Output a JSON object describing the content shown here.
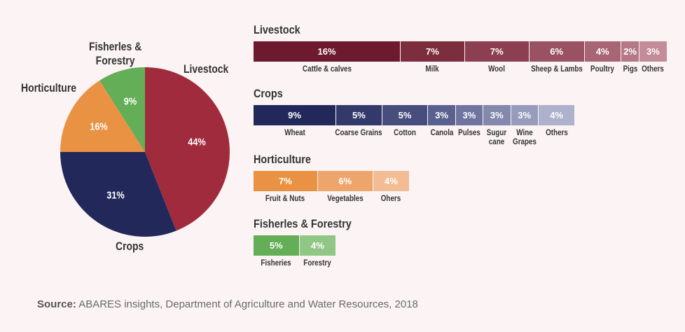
{
  "colors": {
    "background": "#fbf3f4",
    "livestock": "#a02b3c",
    "crops": "#22285a",
    "horticulture": "#e99243",
    "fisheries": "#63ae57"
  },
  "chart_data": [
    {
      "type": "pie",
      "slices": [
        {
          "label": "Livestock",
          "value": 44,
          "value_label": "44%",
          "color": "#a02b3c"
        },
        {
          "label": "Crops",
          "value": 31,
          "value_label": "31%",
          "color": "#22285a"
        },
        {
          "label": "Horticulture",
          "value": 16,
          "value_label": "16%",
          "color": "#e99243"
        },
        {
          "label": "Fisherles &\nForestry",
          "value": 9,
          "value_label": "9%",
          "color": "#63ae57"
        }
      ]
    },
    {
      "type": "bar",
      "orientation": "stacked-horizontal",
      "groups": [
        {
          "title": "Livestock",
          "segments": [
            {
              "label": "Cattle & calves",
              "value": 16,
              "value_label": "16%",
              "color": "#6e1a2e"
            },
            {
              "label": "Milk",
              "value": 7,
              "value_label": "7%",
              "color": "#7c2d3e"
            },
            {
              "label": "Wool",
              "value": 7,
              "value_label": "7%",
              "color": "#8b3f50"
            },
            {
              "label": "Sheep & Lambs",
              "value": 6,
              "value_label": "6%",
              "color": "#9a5262"
            },
            {
              "label": "Poultry",
              "value": 4,
              "value_label": "4%",
              "color": "#a86574"
            },
            {
              "label": "Pigs",
              "value": 2,
              "value_label": "2%",
              "color": "#b57886"
            },
            {
              "label": "Others",
              "value": 3,
              "value_label": "3%",
              "color": "#c28c98"
            }
          ]
        },
        {
          "title": "Crops",
          "segments": [
            {
              "label": "Wheat",
              "value": 9,
              "value_label": "9%",
              "color": "#22285a"
            },
            {
              "label": "Coarse Grains",
              "value": 5,
              "value_label": "5%",
              "color": "#333a6b"
            },
            {
              "label": "Cotton",
              "value": 5,
              "value_label": "5%",
              "color": "#474e7d"
            },
            {
              "label": "Canola",
              "value": 3,
              "value_label": "3%",
              "color": "#5b618e"
            },
            {
              "label": "Pulses",
              "value": 3,
              "value_label": "3%",
              "color": "#6f759e"
            },
            {
              "label": "Sugur\ncane",
              "value": 3,
              "value_label": "3%",
              "color": "#8388ad"
            },
            {
              "label": "Wine\nGrapes",
              "value": 3,
              "value_label": "3%",
              "color": "#989cbc"
            },
            {
              "label": "Others",
              "value": 4,
              "value_label": "4%",
              "color": "#aeb1cb"
            }
          ]
        },
        {
          "title": "Horticulture",
          "segments": [
            {
              "label": "Fruit & Nuts",
              "value": 7,
              "value_label": "7%",
              "color": "#e99243"
            },
            {
              "label": "Vegetables",
              "value": 6,
              "value_label": "6%",
              "color": "#eda56b"
            },
            {
              "label": "Ohers",
              "value": 4,
              "value_label": "4%",
              "color": "#f2bd95"
            }
          ]
        },
        {
          "title": "Fisherles & Forestry",
          "segments": [
            {
              "label": "Fisheries",
              "value": 5,
              "value_label": "5%",
              "color": "#63ae57"
            },
            {
              "label": "Forestry",
              "value": 4,
              "value_label": "4%",
              "color": "#90c784"
            }
          ]
        }
      ]
    }
  ],
  "source": {
    "prefix": "Source:",
    "text": " ABARES insights, Department of Agriculture and Water Resources, 2018"
  }
}
